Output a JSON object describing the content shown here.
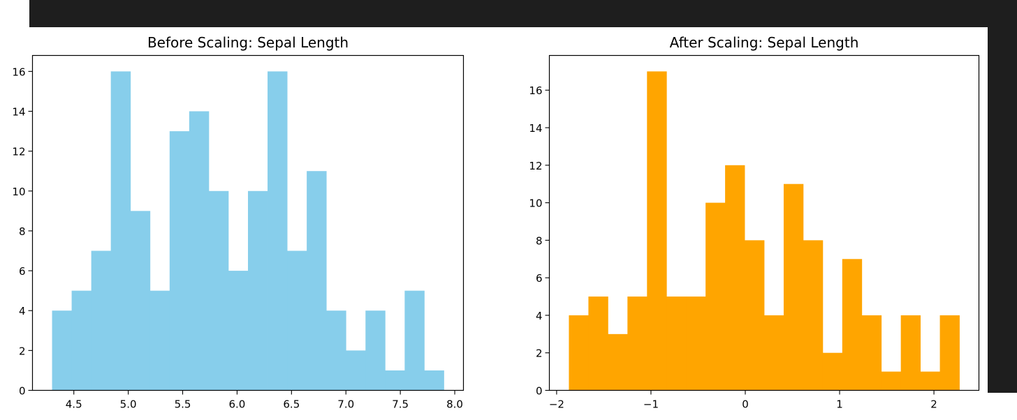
{
  "chart_data": [
    {
      "type": "bar",
      "title": "Before Scaling: Sepal Length",
      "xlabel": "",
      "ylabel": "",
      "color": "#87ceeb",
      "bins": [
        {
          "x0": 4.3,
          "x1": 4.48,
          "count": 4
        },
        {
          "x0": 4.48,
          "x1": 4.66,
          "count": 5
        },
        {
          "x0": 4.66,
          "x1": 4.84,
          "count": 7
        },
        {
          "x0": 4.84,
          "x1": 5.02,
          "count": 16
        },
        {
          "x0": 5.02,
          "x1": 5.2,
          "count": 9
        },
        {
          "x0": 5.2,
          "x1": 5.38,
          "count": 5
        },
        {
          "x0": 5.38,
          "x1": 5.56,
          "count": 13
        },
        {
          "x0": 5.56,
          "x1": 5.74,
          "count": 14
        },
        {
          "x0": 5.74,
          "x1": 5.92,
          "count": 10
        },
        {
          "x0": 5.92,
          "x1": 6.1,
          "count": 6
        },
        {
          "x0": 6.1,
          "x1": 6.28,
          "count": 10
        },
        {
          "x0": 6.28,
          "x1": 6.46,
          "count": 16
        },
        {
          "x0": 6.46,
          "x1": 6.64,
          "count": 7
        },
        {
          "x0": 6.64,
          "x1": 6.82,
          "count": 11
        },
        {
          "x0": 6.82,
          "x1": 7.0,
          "count": 4
        },
        {
          "x0": 7.0,
          "x1": 7.18,
          "count": 2
        },
        {
          "x0": 7.18,
          "x1": 7.36,
          "count": 4
        },
        {
          "x0": 7.36,
          "x1": 7.54,
          "count": 1
        },
        {
          "x0": 7.54,
          "x1": 7.72,
          "count": 5
        },
        {
          "x0": 7.72,
          "x1": 7.9,
          "count": 1
        }
      ],
      "xlim": [
        4.12,
        8.08
      ],
      "ylim": [
        0,
        16.8
      ],
      "xticks": [
        4.5,
        5.0,
        5.5,
        6.0,
        6.5,
        7.0,
        7.5,
        8.0
      ],
      "xtick_labels": [
        "4.5",
        "5.0",
        "5.5",
        "6.0",
        "6.5",
        "7.0",
        "7.5",
        "8.0"
      ],
      "yticks": [
        0,
        2,
        4,
        6,
        8,
        10,
        12,
        14,
        16
      ],
      "ytick_labels": [
        "0",
        "2",
        "4",
        "6",
        "8",
        "10",
        "12",
        "14",
        "16"
      ]
    },
    {
      "type": "bar",
      "title": "After Scaling: Sepal Length",
      "xlabel": "",
      "ylabel": "",
      "color": "#ffa500",
      "bins": [
        {
          "x0": -1.87,
          "x1": -1.663,
          "count": 4
        },
        {
          "x0": -1.663,
          "x1": -1.456,
          "count": 5
        },
        {
          "x0": -1.456,
          "x1": -1.249,
          "count": 3
        },
        {
          "x0": -1.249,
          "x1": -1.042,
          "count": 5
        },
        {
          "x0": -1.042,
          "x1": -0.835,
          "count": 17
        },
        {
          "x0": -0.835,
          "x1": -0.628,
          "count": 5
        },
        {
          "x0": -0.628,
          "x1": -0.421,
          "count": 5
        },
        {
          "x0": -0.421,
          "x1": -0.214,
          "count": 10
        },
        {
          "x0": -0.214,
          "x1": -0.007,
          "count": 12
        },
        {
          "x0": -0.007,
          "x1": 0.2,
          "count": 8
        },
        {
          "x0": 0.2,
          "x1": 0.407,
          "count": 4
        },
        {
          "x0": 0.407,
          "x1": 0.614,
          "count": 11
        },
        {
          "x0": 0.614,
          "x1": 0.821,
          "count": 8
        },
        {
          "x0": 0.821,
          "x1": 1.028,
          "count": 2
        },
        {
          "x0": 1.028,
          "x1": 1.235,
          "count": 7
        },
        {
          "x0": 1.235,
          "x1": 1.442,
          "count": 4
        },
        {
          "x0": 1.442,
          "x1": 1.649,
          "count": 1
        },
        {
          "x0": 1.649,
          "x1": 1.856,
          "count": 4
        },
        {
          "x0": 1.856,
          "x1": 2.063,
          "count": 1
        },
        {
          "x0": 2.063,
          "x1": 2.27,
          "count": 4
        }
      ],
      "xlim": [
        -2.077,
        2.477
      ],
      "ylim": [
        0,
        17.85
      ],
      "xticks": [
        -2,
        -1,
        0,
        1,
        2
      ],
      "xtick_labels": [
        "−2",
        "−1",
        "0",
        "1",
        "2"
      ],
      "yticks": [
        0,
        2,
        4,
        6,
        8,
        10,
        12,
        14,
        16
      ],
      "ytick_labels": [
        "0",
        "2",
        "4",
        "6",
        "8",
        "10",
        "12",
        "14",
        "16"
      ]
    }
  ]
}
